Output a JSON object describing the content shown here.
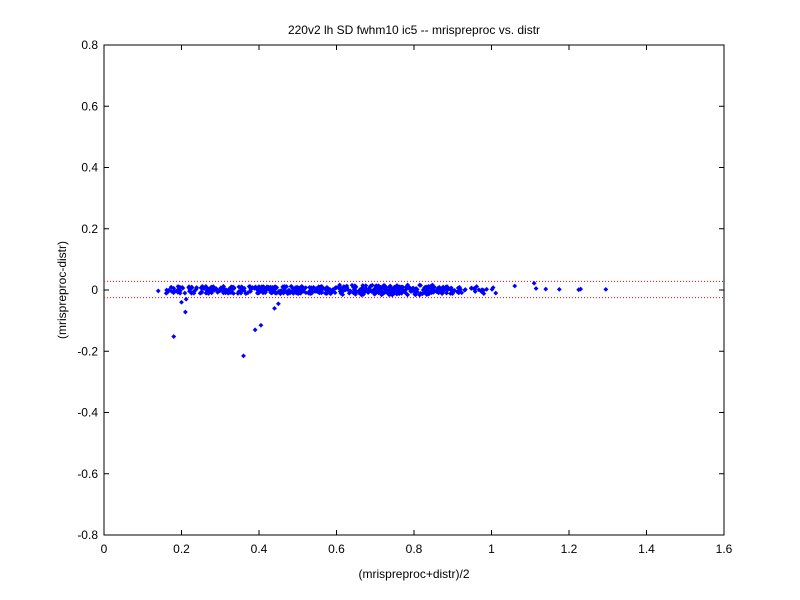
{
  "chart_data": {
    "type": "scatter",
    "title": "220v2 lh SD fwhm10 ic5 -- mrispreproc vs. distr",
    "xlabel": "(mrispreproc+distr)/2",
    "ylabel": "(mrispreproc-distr)",
    "xlim": [
      0,
      1.6
    ],
    "ylim": [
      -0.8,
      0.8
    ],
    "xticks": [
      "0",
      "0.2",
      "0.4",
      "0.6",
      "0.8",
      "1",
      "1.2",
      "1.4",
      "1.6"
    ],
    "yticks": [
      "-0.8",
      "-0.6",
      "-0.4",
      "-0.2",
      "0",
      "0.2",
      "0.4",
      "0.6",
      "0.8"
    ],
    "grid": false,
    "marker_color": "#0000ff",
    "reference_line_color": "#ff0000",
    "reference_lines_y": [
      0.028,
      -0.025
    ],
    "outliers": [
      {
        "x": 0.18,
        "y": -0.152
      },
      {
        "x": 0.2,
        "y": -0.04
      },
      {
        "x": 0.21,
        "y": -0.072
      },
      {
        "x": 0.212,
        "y": -0.03
      },
      {
        "x": 0.36,
        "y": -0.215
      },
      {
        "x": 0.39,
        "y": -0.13
      },
      {
        "x": 0.405,
        "y": -0.115
      },
      {
        "x": 0.44,
        "y": -0.06
      },
      {
        "x": 0.45,
        "y": -0.045
      },
      {
        "x": 0.14,
        "y": -0.003
      },
      {
        "x": 1.06,
        "y": 0.013
      },
      {
        "x": 1.11,
        "y": 0.022
      },
      {
        "x": 1.115,
        "y": 0.005
      },
      {
        "x": 1.14,
        "y": 0.003
      },
      {
        "x": 1.175,
        "y": 0.002
      },
      {
        "x": 1.225,
        "y": 0.001
      },
      {
        "x": 1.23,
        "y": 0.003
      },
      {
        "x": 1.295,
        "y": 0.002
      }
    ],
    "main_band": {
      "x_range": [
        0.16,
        1.02
      ],
      "y_center": 0,
      "y_spread": 0.012
    }
  }
}
